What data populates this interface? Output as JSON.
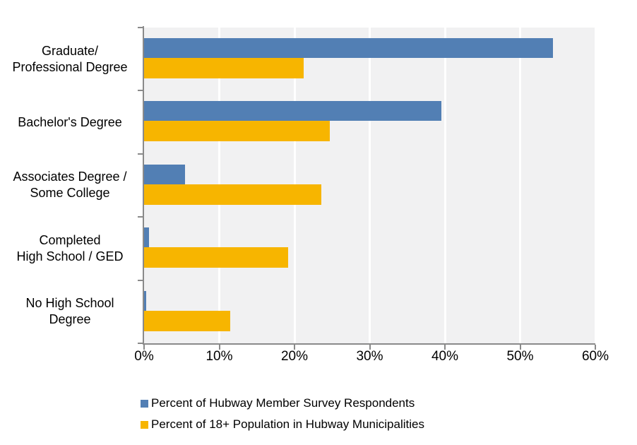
{
  "chart_data": {
    "type": "bar",
    "orientation": "horizontal",
    "title": "",
    "xlabel": "",
    "ylabel": "",
    "categories": [
      "Graduate/\nProfessional Degree",
      "Bachelor's Degree",
      "Associates Degree /\nSome College",
      "Completed\nHigh School / GED",
      "No High School\nDegree"
    ],
    "series": [
      {
        "name": "Percent of Hubway Member Survey Respondents",
        "color": "#527FB4",
        "values": [
          54.4,
          39.5,
          5.4,
          0.7,
          0.3
        ]
      },
      {
        "name": "Percent of 18+ Population in Hubway Municipalities",
        "color": "#F7B500",
        "values": [
          21.2,
          24.7,
          23.6,
          19.2,
          11.5
        ]
      }
    ],
    "xlim": [
      0,
      60
    ],
    "tick_values": [
      0,
      10,
      20,
      30,
      40,
      50,
      60
    ],
    "x_tick_labels": [
      "0%",
      "10%",
      "20%",
      "30%",
      "40%",
      "50%",
      "60%"
    ],
    "grid": true,
    "legend_position": "bottom-left",
    "plot_background": "#F1F1F2",
    "gridline_color": "#FFFFFF",
    "axis_color": "#8A8A8A"
  }
}
